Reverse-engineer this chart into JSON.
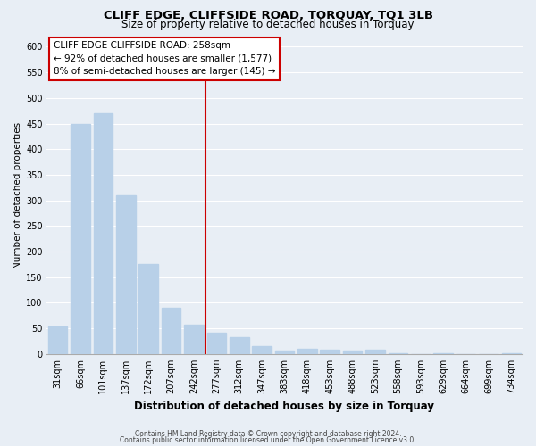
{
  "title": "CLIFF EDGE, CLIFFSIDE ROAD, TORQUAY, TQ1 3LB",
  "subtitle": "Size of property relative to detached houses in Torquay",
  "xlabel": "Distribution of detached houses by size in Torquay",
  "ylabel": "Number of detached properties",
  "bar_labels": [
    "31sqm",
    "66sqm",
    "101sqm",
    "137sqm",
    "172sqm",
    "207sqm",
    "242sqm",
    "277sqm",
    "312sqm",
    "347sqm",
    "383sqm",
    "418sqm",
    "453sqm",
    "488sqm",
    "523sqm",
    "558sqm",
    "593sqm",
    "629sqm",
    "664sqm",
    "699sqm",
    "734sqm"
  ],
  "bar_values": [
    54,
    450,
    470,
    310,
    175,
    90,
    57,
    42,
    32,
    15,
    7,
    10,
    8,
    7,
    9,
    2,
    0,
    2,
    0,
    0,
    2
  ],
  "bar_color": "#b8d0e8",
  "vline_x": 6.5,
  "vline_color": "#cc0000",
  "ylim": [
    0,
    620
  ],
  "yticks": [
    0,
    50,
    100,
    150,
    200,
    250,
    300,
    350,
    400,
    450,
    500,
    550,
    600
  ],
  "annotation_title": "CLIFF EDGE CLIFFSIDE ROAD: 258sqm",
  "annotation_line1": "← 92% of detached houses are smaller (1,577)",
  "annotation_line2": "8% of semi-detached houses are larger (145) →",
  "annotation_box_facecolor": "#ffffff",
  "annotation_box_edgecolor": "#cc0000",
  "footer_line1": "Contains HM Land Registry data © Crown copyright and database right 2024.",
  "footer_line2": "Contains public sector information licensed under the Open Government Licence v3.0.",
  "figure_facecolor": "#e8eef5",
  "axes_facecolor": "#e8eef5",
  "grid_color": "#ffffff",
  "title_fontsize": 9.5,
  "subtitle_fontsize": 8.5,
  "xlabel_fontsize": 8.5,
  "ylabel_fontsize": 7.5,
  "tick_fontsize": 7,
  "annotation_fontsize": 7.5,
  "footer_fontsize": 5.5
}
